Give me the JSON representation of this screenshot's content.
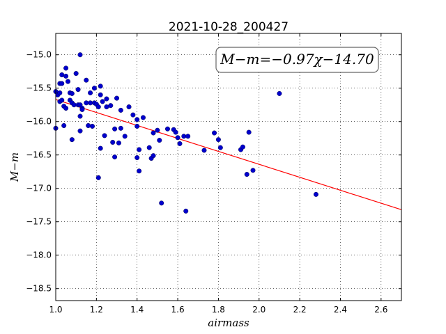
{
  "chart_data": {
    "type": "scatter",
    "title": "2021-10-28_200427",
    "xlabel": "airmass",
    "ylabel": "M−m",
    "xlim": [
      1.0,
      2.7
    ],
    "ylim": [
      -18.68,
      -14.68
    ],
    "y_inverted": true,
    "grid": true,
    "xticks": [
      "1.0",
      "1.2",
      "1.4",
      "1.6",
      "1.8",
      "2.0",
      "2.2",
      "2.4",
      "2.6"
    ],
    "xtick_values": [
      1.0,
      1.2,
      1.4,
      1.6,
      1.8,
      2.0,
      2.2,
      2.4,
      2.6
    ],
    "yticks": [
      "−15.0",
      "−15.5",
      "−16.0",
      "−16.5",
      "−17.0",
      "−17.5",
      "−18.0",
      "−18.5"
    ],
    "ytick_values": [
      -15.0,
      -15.5,
      -16.0,
      -16.5,
      -17.0,
      -17.5,
      -18.0,
      -18.5
    ],
    "annotation": "M−m=−0.97χ−14.70",
    "fit": {
      "slope": -0.97,
      "intercept": -14.7,
      "color": "#ff0000"
    },
    "marker_color": "#0000cc",
    "points": [
      [
        1.0,
        -16.1
      ],
      [
        1.0,
        -15.55
      ],
      [
        1.01,
        -15.6
      ],
      [
        1.02,
        -15.43
      ],
      [
        1.02,
        -15.57
      ],
      [
        1.02,
        -15.7
      ],
      [
        1.03,
        -15.43
      ],
      [
        1.03,
        -15.3
      ],
      [
        1.03,
        -15.68
      ],
      [
        1.04,
        -15.77
      ],
      [
        1.04,
        -16.06
      ],
      [
        1.05,
        -15.32
      ],
      [
        1.05,
        -15.2
      ],
      [
        1.05,
        -15.8
      ],
      [
        1.06,
        -15.4
      ],
      [
        1.07,
        -15.68
      ],
      [
        1.07,
        -15.57
      ],
      [
        1.08,
        -15.58
      ],
      [
        1.08,
        -15.72
      ],
      [
        1.08,
        -16.27
      ],
      [
        1.09,
        -15.75
      ],
      [
        1.1,
        -15.28
      ],
      [
        1.11,
        -15.52
      ],
      [
        1.11,
        -15.75
      ],
      [
        1.12,
        -15.92
      ],
      [
        1.12,
        -15.75
      ],
      [
        1.12,
        -15.0
      ],
      [
        1.12,
        -16.14
      ],
      [
        1.13,
        -15.8
      ],
      [
        1.13,
        -15.82
      ],
      [
        1.15,
        -15.72
      ],
      [
        1.15,
        -15.38
      ],
      [
        1.16,
        -16.06
      ],
      [
        1.17,
        -15.57
      ],
      [
        1.17,
        -15.72
      ],
      [
        1.18,
        -16.07
      ],
      [
        1.19,
        -15.72
      ],
      [
        1.19,
        -15.5
      ],
      [
        1.2,
        -15.74
      ],
      [
        1.21,
        -15.78
      ],
      [
        1.21,
        -16.84
      ],
      [
        1.22,
        -16.4
      ],
      [
        1.22,
        -15.47
      ],
      [
        1.22,
        -15.6
      ],
      [
        1.23,
        -15.7
      ],
      [
        1.24,
        -16.21
      ],
      [
        1.25,
        -15.66
      ],
      [
        1.25,
        -15.78
      ],
      [
        1.27,
        -15.76
      ],
      [
        1.28,
        -16.31
      ],
      [
        1.29,
        -16.11
      ],
      [
        1.29,
        -16.53
      ],
      [
        1.3,
        -15.65
      ],
      [
        1.31,
        -16.32
      ],
      [
        1.32,
        -15.83
      ],
      [
        1.32,
        -16.1
      ],
      [
        1.34,
        -16.22
      ],
      [
        1.36,
        -15.78
      ],
      [
        1.38,
        -15.9
      ],
      [
        1.4,
        -15.97
      ],
      [
        1.4,
        -16.07
      ],
      [
        1.4,
        -16.54
      ],
      [
        1.41,
        -16.74
      ],
      [
        1.41,
        -16.42
      ],
      [
        1.43,
        -15.94
      ],
      [
        1.46,
        -16.39
      ],
      [
        1.47,
        -16.55
      ],
      [
        1.48,
        -16.51
      ],
      [
        1.48,
        -16.17
      ],
      [
        1.5,
        -16.13
      ],
      [
        1.51,
        -16.28
      ],
      [
        1.52,
        -17.22
      ],
      [
        1.55,
        -16.11
      ],
      [
        1.58,
        -16.12
      ],
      [
        1.59,
        -16.16
      ],
      [
        1.6,
        -16.24
      ],
      [
        1.61,
        -16.33
      ],
      [
        1.63,
        -16.22
      ],
      [
        1.64,
        -17.34
      ],
      [
        1.65,
        -16.22
      ],
      [
        1.73,
        -16.43
      ],
      [
        1.78,
        -16.17
      ],
      [
        1.8,
        -16.27
      ],
      [
        1.81,
        -16.39
      ],
      [
        1.91,
        -16.42
      ],
      [
        1.92,
        -16.38
      ],
      [
        1.94,
        -16.79
      ],
      [
        1.95,
        -16.16
      ],
      [
        1.97,
        -16.73
      ],
      [
        2.1,
        -15.58
      ],
      [
        2.28,
        -17.09
      ]
    ]
  }
}
